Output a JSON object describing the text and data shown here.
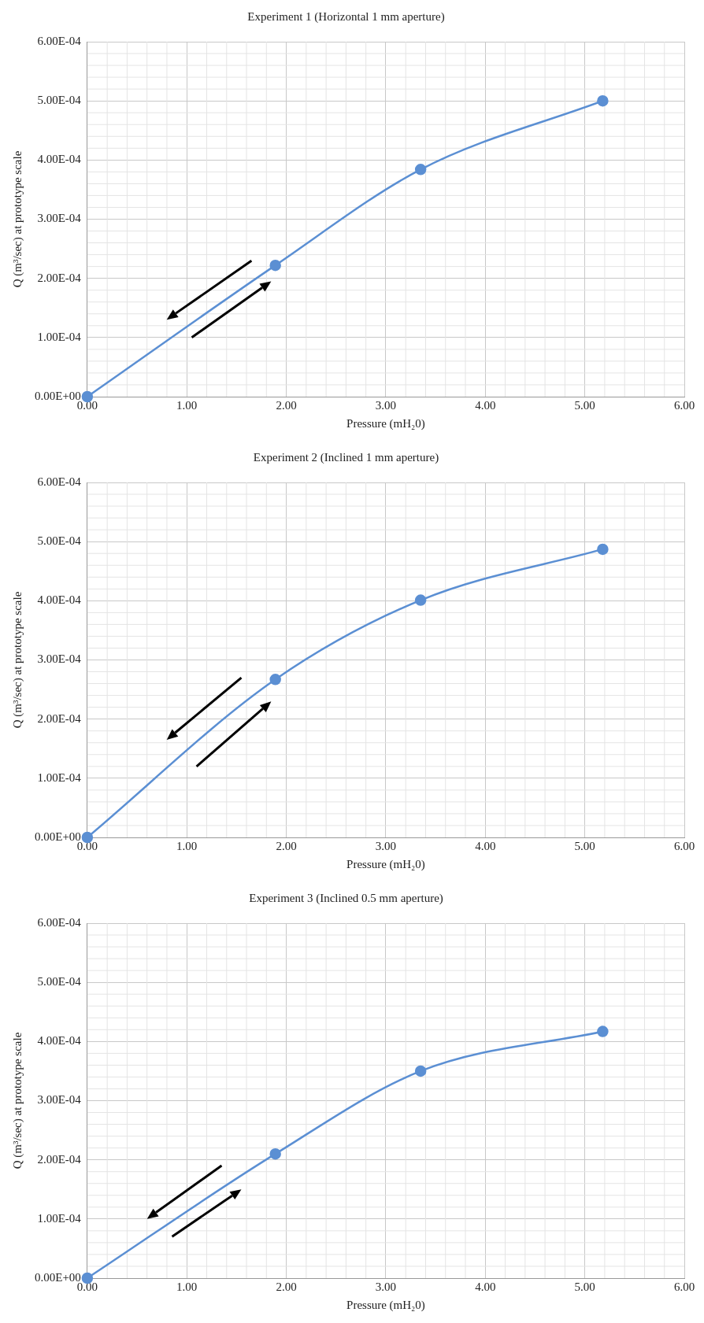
{
  "chart_data": [
    {
      "type": "line",
      "title": "Experiment 1 (Horizontal 1 mm aperture)",
      "xlabel": "Pressure (mH₂0)",
      "ylabel": "Q (m³/sec) at prototype scale",
      "x": [
        0,
        1.89,
        3.35,
        5.18
      ],
      "series": [
        {
          "color": "#5b8fd3",
          "values": [
            0,
            0.000222,
            0.000384,
            0.0005
          ]
        }
      ],
      "xlim": [
        0,
        6
      ],
      "xticks": [
        {
          "value": 0,
          "label": "0.00"
        },
        {
          "value": 1,
          "label": "1.00"
        },
        {
          "value": 2,
          "label": "2.00"
        },
        {
          "value": 3,
          "label": "3.00"
        },
        {
          "value": 4,
          "label": "4.00"
        },
        {
          "value": 5,
          "label": "5.00"
        },
        {
          "value": 6,
          "label": "6.00"
        }
      ],
      "ylim": [
        0,
        0.0006
      ],
      "yticks": [
        {
          "value": 0,
          "label": "0.00E+00"
        },
        {
          "value": 0.0001,
          "label": "1.00E-04"
        },
        {
          "value": 0.0002,
          "label": "2.00E-04"
        },
        {
          "value": 0.0003,
          "label": "3.00E-04"
        },
        {
          "value": 0.0004,
          "label": "4.00E-04"
        },
        {
          "value": 0.0005,
          "label": "5.00E-04"
        },
        {
          "value": 0.0006,
          "label": "6.00E-04"
        }
      ],
      "grid": true,
      "legend": false,
      "marker": "circle",
      "line_style": "solid"
    },
    {
      "type": "line",
      "title": "Experiment 2 (Inclined 1 mm aperture)",
      "xlabel": "Pressure (mH₂0)",
      "ylabel": "Q (m³/sec) at prototype scale",
      "x": [
        0,
        1.89,
        3.35,
        5.18
      ],
      "series": [
        {
          "color": "#5b8fd3",
          "values": [
            0,
            0.000267,
            0.000401,
            0.000487
          ]
        }
      ],
      "xlim": [
        0,
        6
      ],
      "xticks": [
        {
          "value": 0,
          "label": "0.00"
        },
        {
          "value": 1,
          "label": "1.00"
        },
        {
          "value": 2,
          "label": "2.00"
        },
        {
          "value": 3,
          "label": "3.00"
        },
        {
          "value": 4,
          "label": "4.00"
        },
        {
          "value": 5,
          "label": "5.00"
        },
        {
          "value": 6,
          "label": "6.00"
        }
      ],
      "ylim": [
        0,
        0.0006
      ],
      "yticks": [
        {
          "value": 0,
          "label": "0.00E+00"
        },
        {
          "value": 0.0001,
          "label": "1.00E-04"
        },
        {
          "value": 0.0002,
          "label": "2.00E-04"
        },
        {
          "value": 0.0003,
          "label": "3.00E-04"
        },
        {
          "value": 0.0004,
          "label": "4.00E-04"
        },
        {
          "value": 0.0005,
          "label": "5.00E-04"
        },
        {
          "value": 0.0006,
          "label": "6.00E-04"
        }
      ],
      "grid": true,
      "legend": false,
      "marker": "circle",
      "line_style": "solid"
    },
    {
      "type": "line",
      "title": "Experiment 3 (Inclined 0.5 mm aperture)",
      "xlabel": "Pressure (mH₂0)",
      "ylabel": "Q (m³/sec) at prototype scale",
      "x": [
        0,
        1.89,
        3.35,
        5.18
      ],
      "series": [
        {
          "color": "#5b8fd3",
          "values": [
            0,
            0.00021,
            0.00035,
            0.000417
          ]
        }
      ],
      "xlim": [
        0,
        6
      ],
      "xticks": [
        {
          "value": 0,
          "label": "0.00"
        },
        {
          "value": 1,
          "label": "1.00"
        },
        {
          "value": 2,
          "label": "2.00"
        },
        {
          "value": 3,
          "label": "3.00"
        },
        {
          "value": 4,
          "label": "4.00"
        },
        {
          "value": 5,
          "label": "5.00"
        },
        {
          "value": 6,
          "label": "6.00"
        }
      ],
      "ylim": [
        0,
        0.0006
      ],
      "yticks": [
        {
          "value": 0,
          "label": "0.00E+00"
        },
        {
          "value": 0.0001,
          "label": "1.00E-04"
        },
        {
          "value": 0.0002,
          "label": "2.00E-04"
        },
        {
          "value": 0.0003,
          "label": "3.00E-04"
        },
        {
          "value": 0.0004,
          "label": "4.00E-04"
        },
        {
          "value": 0.0005,
          "label": "5.00E-04"
        },
        {
          "value": 0.0006,
          "label": "6.00E-04"
        }
      ],
      "grid": true,
      "legend": false,
      "marker": "circle",
      "line_style": "solid"
    }
  ]
}
